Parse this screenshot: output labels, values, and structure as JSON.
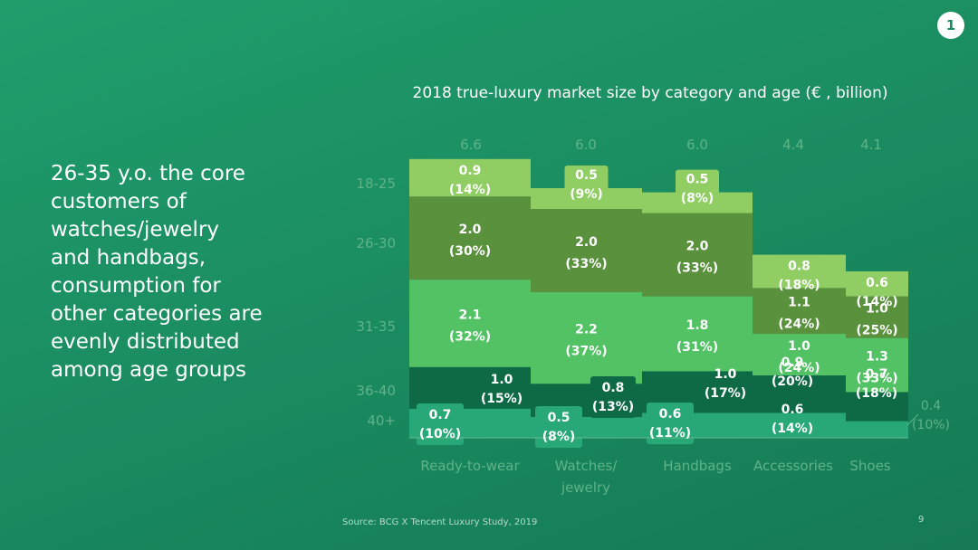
{
  "slide": {
    "page_badge": "1",
    "headline": "26-35 y.o. the core\ncustomers of\nwatches/jewelry\nand handbags,\nconsumption for\nother categories are\nevenly distributed\namong age groups",
    "source": "Source: BCG X Tencent Luxury Study, 2019",
    "page_number": "9"
  },
  "colors": {
    "age_18_25": "#90cd63",
    "age_26_30": "#5a913d",
    "age_31_35": "#52c265",
    "age_36_40": "#0e6a45",
    "age_40_plus": "#27a876",
    "faded_label": "#5fb389",
    "value_text": "#ffffff"
  },
  "chart_data": {
    "type": "bar",
    "stacked": true,
    "title": "2018 true-luxury market size by category and age (€ , billion)",
    "categories": [
      "Ready-to-wear",
      "Watches/\njewelry",
      "Handbags",
      "Accessories",
      "Shoes"
    ],
    "totals": [
      "6.6",
      "6.0",
      "6.0",
      "4.4",
      "4.1"
    ],
    "series": [
      {
        "name": "40+",
        "values": [
          0.7,
          0.5,
          0.6,
          0.6,
          0.4
        ],
        "labels": [
          "0.7",
          "0.5",
          "0.6",
          "0.6",
          "0.4"
        ],
        "pct": [
          "(10%)",
          "(8%)",
          "(11%)",
          "(14%)",
          "(10%)"
        ]
      },
      {
        "name": "36-40",
        "values": [
          1.0,
          0.8,
          1.0,
          0.9,
          0.7
        ],
        "labels": [
          "1.0",
          "0.8",
          "1.0",
          "0.9",
          "0.7"
        ],
        "pct": [
          "(15%)",
          "(13%)",
          "(17%)",
          "(20%)",
          "(18%)"
        ]
      },
      {
        "name": "31-35",
        "values": [
          2.1,
          2.2,
          1.8,
          1.0,
          1.3
        ],
        "labels": [
          "2.1",
          "2.2",
          "1.8",
          "1.0",
          "1.3"
        ],
        "pct": [
          "(32%)",
          "(37%)",
          "(31%)",
          "(24%)",
          "(33%)"
        ]
      },
      {
        "name": "26-30",
        "values": [
          2.0,
          2.0,
          2.0,
          1.1,
          1.0
        ],
        "labels": [
          "2.0",
          "2.0",
          "2.0",
          "1.1",
          "1.0"
        ],
        "pct": [
          "(30%)",
          "(33%)",
          "(33%)",
          "(24%)",
          "(25%)"
        ]
      },
      {
        "name": "18-25",
        "values": [
          0.9,
          0.5,
          0.5,
          0.8,
          0.6
        ],
        "labels": [
          "0.9",
          "0.5",
          "0.5",
          "0.8",
          "0.6"
        ],
        "pct": [
          "(14%)",
          "(9%)",
          "(8%)",
          "(18%)",
          "(14%)"
        ]
      }
    ],
    "ylim": [
      0,
      6.6
    ]
  }
}
